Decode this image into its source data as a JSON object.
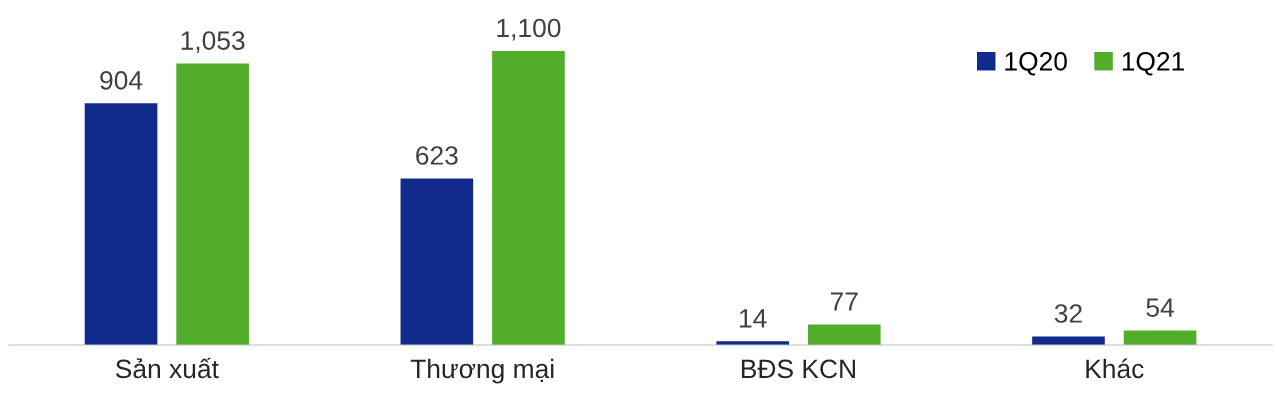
{
  "chart_data": {
    "type": "bar",
    "categories": [
      "Sản xuất",
      "Thương mại",
      "BĐS KCN",
      "Khác"
    ],
    "series": [
      {
        "name": "1Q20",
        "color": "#122a8c",
        "values": [
          904,
          623,
          14,
          32
        ],
        "value_labels": [
          "904",
          "623",
          "14",
          "32"
        ]
      },
      {
        "name": "1Q21",
        "color": "#52ae2a",
        "values": [
          1053,
          1100,
          77,
          54
        ],
        "value_labels": [
          "1,053",
          "1,100",
          "77",
          "54"
        ]
      }
    ],
    "legend": "top right",
    "grid": false
  }
}
